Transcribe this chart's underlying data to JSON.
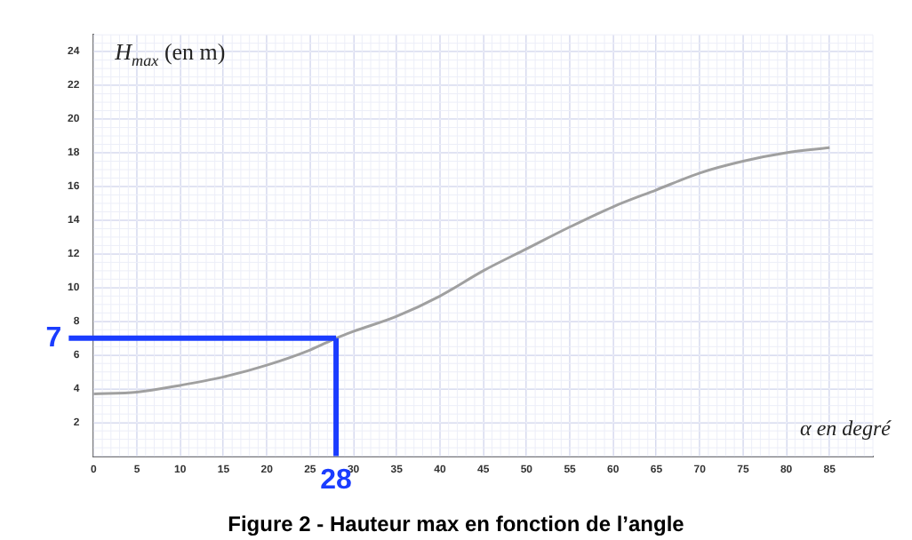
{
  "chart_data": {
    "type": "line",
    "title": "Figure 2 - Hauteur max en fonction de l’angle",
    "xlabel": "α en degré",
    "ylabel": "H$_{max}$ (en m)",
    "x": [
      0,
      5,
      10,
      15,
      20,
      25,
      28,
      30,
      35,
      40,
      45,
      50,
      55,
      60,
      65,
      70,
      75,
      80,
      85
    ],
    "series": [
      {
        "color": "#a0a0a0",
        "values": [
          3.7,
          3.8,
          4.2,
          4.7,
          5.4,
          6.3,
          7,
          7.4,
          8.3,
          9.5,
          11,
          12.3,
          13.6,
          14.8,
          15.8,
          16.8,
          17.5,
          18,
          18.3
        ]
      }
    ],
    "xlim": [
      0,
      90
    ],
    "ylim": [
      0,
      25
    ],
    "xticks": [
      0,
      5,
      10,
      15,
      20,
      25,
      30,
      35,
      40,
      45,
      50,
      55,
      60,
      65,
      70,
      75,
      80,
      85
    ],
    "yticks": [
      2,
      4,
      6,
      8,
      10,
      12,
      14,
      16,
      18,
      20,
      22,
      24
    ],
    "grid": true,
    "marker": "none",
    "line_style": "solid",
    "ref_lines": [
      {
        "axis": "y",
        "value": 7,
        "label": "7",
        "color": "#1a3cff"
      },
      {
        "axis": "x",
        "value": 28,
        "label": "28",
        "color": "#1a3cff"
      }
    ]
  }
}
